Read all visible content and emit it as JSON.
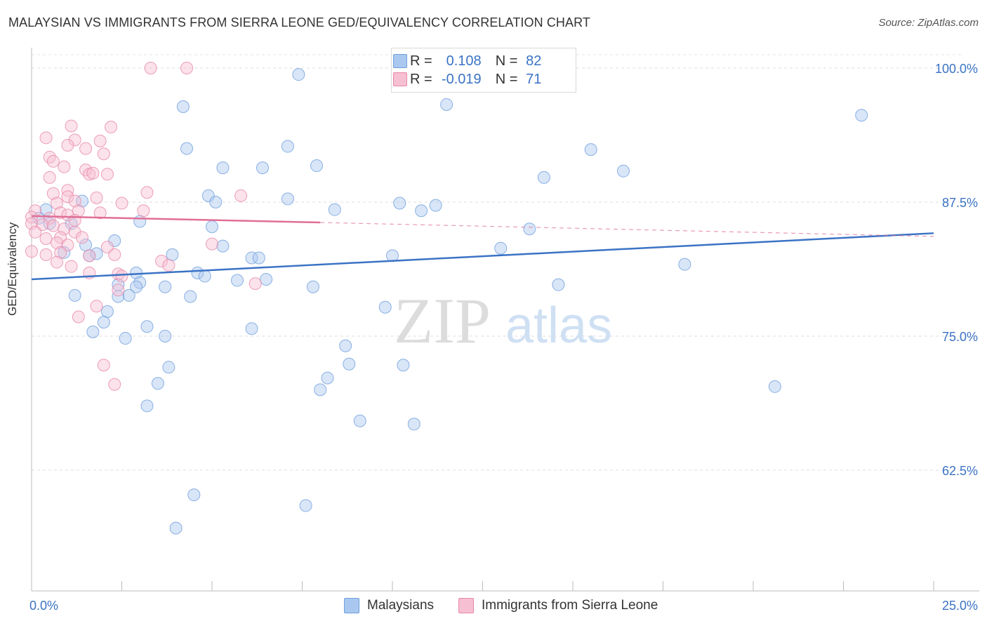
{
  "title": "MALAYSIAN VS IMMIGRANTS FROM SIERRA LEONE GED/EQUIVALENCY CORRELATION CHART",
  "source": "Source: ZipAtlas.com",
  "watermark": {
    "zip": "ZIP",
    "atlas": "atlas"
  },
  "legend": {
    "r_label": "R =",
    "n_label": "N =",
    "rows": [
      {
        "series": "Malaysians",
        "r": "0.108",
        "n": "82",
        "color": "#aac8ef",
        "stroke": "#6f9fdc"
      },
      {
        "series": "Immigrants from Sierra Leone",
        "r": "-0.019",
        "n": "71",
        "color": "#f6bfd2",
        "stroke": "#e888a9"
      }
    ]
  },
  "chart_data": {
    "type": "scatter",
    "title": "MALAYSIAN VS IMMIGRANTS FROM SIERRA LEONE GED/EQUIVALENCY CORRELATION CHART",
    "xlabel": "",
    "ylabel": "GED/Equivalency",
    "xlim": [
      0,
      25
    ],
    "ylim": [
      50,
      100
    ],
    "x_tick_labels": [
      "0.0%",
      "25.0%"
    ],
    "y_ticks": [
      62.5,
      75.0,
      87.5,
      100.0
    ],
    "y_tick_labels": [
      "62.5%",
      "75.0%",
      "87.5%",
      "100.0%"
    ],
    "grid": true,
    "legend_position": "top-center",
    "series": [
      {
        "name": "Malaysians",
        "color": "#6f9fdc",
        "trend": {
          "x": [
            0,
            25
          ],
          "y": [
            80.3,
            84.6
          ],
          "color": "#3b73c5"
        },
        "points": [
          [
            7.4,
            99.4
          ],
          [
            4.2,
            96.4
          ],
          [
            11.5,
            96.6
          ],
          [
            23.0,
            95.6
          ],
          [
            4.3,
            92.5
          ],
          [
            7.1,
            92.7
          ],
          [
            15.5,
            92.4
          ],
          [
            5.3,
            90.7
          ],
          [
            6.4,
            90.7
          ],
          [
            7.9,
            90.9
          ],
          [
            14.2,
            89.8
          ],
          [
            16.4,
            90.4
          ],
          [
            0.4,
            86.8
          ],
          [
            1.4,
            87.6
          ],
          [
            4.9,
            88.1
          ],
          [
            5.1,
            87.5
          ],
          [
            7.1,
            87.8
          ],
          [
            8.4,
            86.8
          ],
          [
            10.2,
            87.4
          ],
          [
            10.8,
            86.7
          ],
          [
            11.2,
            87.2
          ],
          [
            0.2,
            86.0
          ],
          [
            0.5,
            85.5
          ],
          [
            1.1,
            85.5
          ],
          [
            3.0,
            85.7
          ],
          [
            5.0,
            85.2
          ],
          [
            13.8,
            85.0
          ],
          [
            1.5,
            83.5
          ],
          [
            2.3,
            83.9
          ],
          [
            5.3,
            83.4
          ],
          [
            0.9,
            82.8
          ],
          [
            1.6,
            82.5
          ],
          [
            1.8,
            82.7
          ],
          [
            3.9,
            82.6
          ],
          [
            6.1,
            82.3
          ],
          [
            6.3,
            82.3
          ],
          [
            13.0,
            83.2
          ],
          [
            10.0,
            82.5
          ],
          [
            18.1,
            81.7
          ],
          [
            2.9,
            80.9
          ],
          [
            4.6,
            80.9
          ],
          [
            4.8,
            80.6
          ],
          [
            5.7,
            80.2
          ],
          [
            6.5,
            80.3
          ],
          [
            3.0,
            80.0
          ],
          [
            2.4,
            79.8
          ],
          [
            2.9,
            79.6
          ],
          [
            3.7,
            79.6
          ],
          [
            7.8,
            79.6
          ],
          [
            14.6,
            79.8
          ],
          [
            1.2,
            78.8
          ],
          [
            2.4,
            78.7
          ],
          [
            2.7,
            78.8
          ],
          [
            4.4,
            78.7
          ],
          [
            9.8,
            77.7
          ],
          [
            2.1,
            77.3
          ],
          [
            2.0,
            76.3
          ],
          [
            3.2,
            75.9
          ],
          [
            3.7,
            75.0
          ],
          [
            6.1,
            75.7
          ],
          [
            1.7,
            75.4
          ],
          [
            2.6,
            74.8
          ],
          [
            8.7,
            74.1
          ],
          [
            8.8,
            72.4
          ],
          [
            10.3,
            72.3
          ],
          [
            3.8,
            72.1
          ],
          [
            8.2,
            71.1
          ],
          [
            3.5,
            70.6
          ],
          [
            8.0,
            70.0
          ],
          [
            20.6,
            70.3
          ],
          [
            3.2,
            68.5
          ],
          [
            9.1,
            67.1
          ],
          [
            10.6,
            66.8
          ],
          [
            4.5,
            60.2
          ],
          [
            7.6,
            59.2
          ],
          [
            4.0,
            57.1
          ]
        ]
      },
      {
        "name": "Immigrants from Sierra Leone",
        "color": "#e888a9",
        "trend": {
          "x": [
            0,
            8
          ],
          "y": [
            86.2,
            85.6
          ],
          "color": "#e06f96",
          "dashed_extension": {
            "x": [
              8,
              25
            ],
            "y": [
              85.6,
              84.3
            ]
          }
        },
        "points": [
          [
            3.3,
            100.0
          ],
          [
            4.3,
            100.0
          ],
          [
            1.1,
            94.6
          ],
          [
            2.2,
            94.5
          ],
          [
            0.4,
            93.5
          ],
          [
            1.2,
            93.3
          ],
          [
            1.0,
            92.8
          ],
          [
            1.9,
            93.2
          ],
          [
            1.5,
            92.5
          ],
          [
            2.0,
            92.0
          ],
          [
            0.5,
            91.7
          ],
          [
            0.6,
            91.3
          ],
          [
            0.9,
            90.8
          ],
          [
            1.5,
            90.5
          ],
          [
            1.6,
            90.1
          ],
          [
            0.5,
            89.8
          ],
          [
            1.7,
            90.2
          ],
          [
            2.1,
            90.1
          ],
          [
            1.0,
            88.6
          ],
          [
            3.2,
            88.4
          ],
          [
            0.6,
            88.3
          ],
          [
            1.0,
            88.0
          ],
          [
            5.8,
            88.1
          ],
          [
            0.7,
            87.4
          ],
          [
            1.2,
            87.6
          ],
          [
            1.8,
            87.9
          ],
          [
            2.5,
            87.4
          ],
          [
            0.1,
            86.7
          ],
          [
            0.8,
            86.5
          ],
          [
            1.3,
            86.7
          ],
          [
            1.9,
            86.5
          ],
          [
            3.1,
            86.7
          ],
          [
            0.0,
            86.1
          ],
          [
            0.5,
            86.0
          ],
          [
            1.0,
            86.3
          ],
          [
            1.2,
            85.8
          ],
          [
            0.0,
            85.5
          ],
          [
            0.3,
            85.4
          ],
          [
            0.6,
            85.3
          ],
          [
            0.9,
            85.0
          ],
          [
            1.2,
            84.7
          ],
          [
            0.1,
            84.7
          ],
          [
            0.4,
            84.1
          ],
          [
            0.8,
            84.2
          ],
          [
            1.4,
            84.2
          ],
          [
            0.7,
            83.7
          ],
          [
            1.0,
            83.5
          ],
          [
            2.1,
            83.3
          ],
          [
            0.0,
            82.9
          ],
          [
            0.4,
            82.6
          ],
          [
            0.8,
            82.8
          ],
          [
            1.6,
            82.5
          ],
          [
            2.3,
            82.6
          ],
          [
            5.0,
            83.6
          ],
          [
            3.6,
            82.0
          ],
          [
            0.7,
            81.9
          ],
          [
            1.1,
            81.5
          ],
          [
            3.8,
            81.6
          ],
          [
            1.6,
            80.9
          ],
          [
            2.4,
            80.8
          ],
          [
            2.5,
            80.6
          ],
          [
            6.2,
            79.9
          ],
          [
            2.4,
            79.3
          ],
          [
            1.8,
            77.8
          ],
          [
            1.3,
            76.8
          ],
          [
            2.0,
            72.3
          ],
          [
            2.3,
            70.5
          ]
        ]
      }
    ]
  }
}
